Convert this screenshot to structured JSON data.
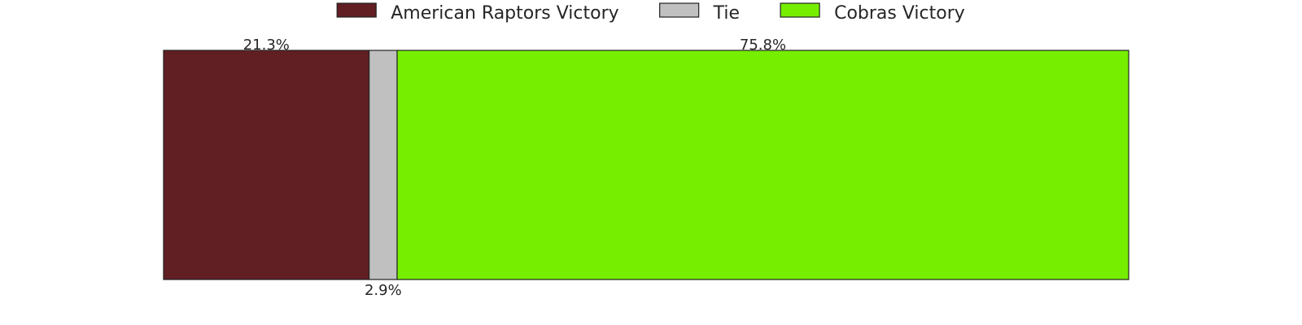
{
  "chart_data": {
    "type": "bar",
    "orientation": "horizontal",
    "stacked": true,
    "normalized": true,
    "title": "",
    "xlabel": "",
    "ylabel": "",
    "xlim": [
      0,
      100
    ],
    "grid": false,
    "legend_position": "top-center",
    "categories": [
      ""
    ],
    "series": [
      {
        "name": "American Raptors Victory",
        "values": [
          21.3
        ],
        "label": "21.3%",
        "label_position": "above",
        "color": "#611f23"
      },
      {
        "name": "Tie",
        "values": [
          2.9
        ],
        "label": "2.9%",
        "label_position": "below",
        "color": "#c0c0c0"
      },
      {
        "name": "Cobras Victory",
        "values": [
          75.8
        ],
        "label": "75.8%",
        "label_position": "above",
        "color": "#76ee00"
      }
    ]
  }
}
